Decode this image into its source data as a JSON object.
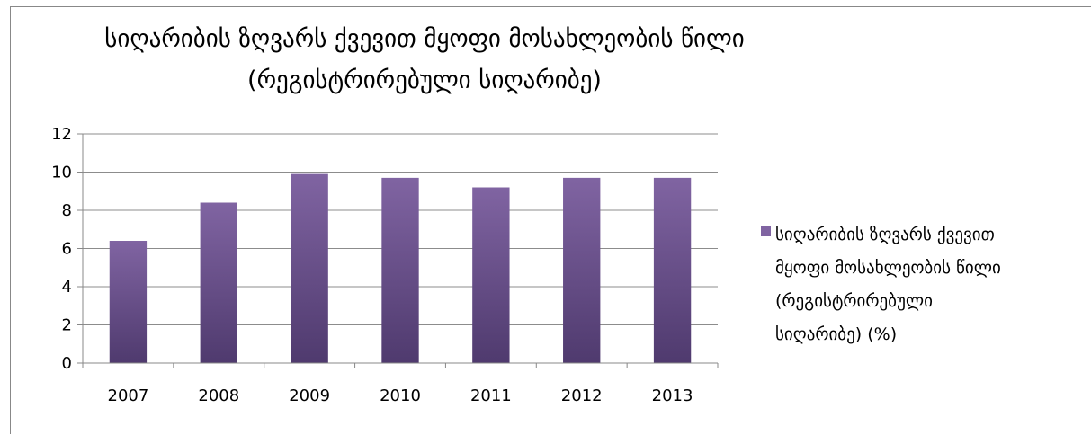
{
  "chart_data": {
    "type": "bar",
    "title_lines": [
      "სიღარიბის ზღვარს ქვევით მყოფი მოსახლეობის წილი",
      "(რეგისტრირებული სიღარიბე)"
    ],
    "categories": [
      "2007",
      "2008",
      "2009",
      "2010",
      "2011",
      "2012",
      "2013"
    ],
    "series": [
      {
        "name": "სიღარიბის ზღვარს ქვევით მყოფი მოსახლეობის წილი (რეგისტრირებული სიღარიბე) (%)",
        "legend_lines": [
          "სიღარიბის ზღვარს ქვევით",
          "მყოფი მოსახლეობის წილი",
          "(რეგისტრირებული",
          "სიღარიბე) (%)"
        ],
        "values": [
          6.4,
          8.4,
          9.9,
          9.7,
          9.2,
          9.7,
          9.7
        ],
        "color_top": "#8064a2",
        "color_bottom": "#4f3a6e"
      }
    ],
    "yticks": [
      "0",
      "2",
      "4",
      "6",
      "8",
      "10",
      "12"
    ],
    "ylim": [
      0,
      12
    ],
    "grid": true,
    "legend_position": "right"
  }
}
